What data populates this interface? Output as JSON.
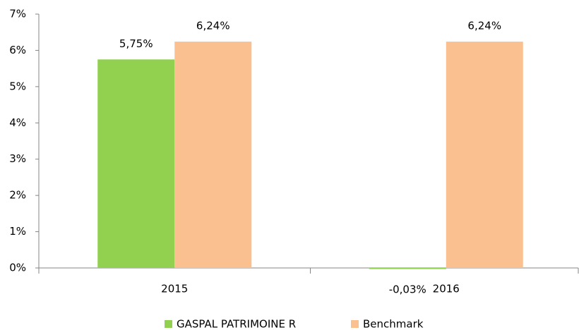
{
  "chart_data": {
    "type": "bar",
    "categories": [
      "2015",
      "2016"
    ],
    "series": [
      {
        "name": "GASPAL PATRIMOINE R",
        "color": "#92d050",
        "values": [
          5.75,
          -0.03
        ],
        "value_labels": [
          "5,75%",
          "-0,03%"
        ]
      },
      {
        "name": "Benchmark",
        "color": "#fac090",
        "values": [
          6.24,
          6.24
        ],
        "value_labels": [
          "6,24%",
          "6,24%"
        ]
      }
    ],
    "ylim": [
      0,
      7
    ],
    "yticks": [
      {
        "value": 0,
        "label": "0%"
      },
      {
        "value": 1,
        "label": "1%"
      },
      {
        "value": 2,
        "label": "2%"
      },
      {
        "value": 3,
        "label": "3%"
      },
      {
        "value": 4,
        "label": "4%"
      },
      {
        "value": 5,
        "label": "5%"
      },
      {
        "value": 6,
        "label": "6%"
      },
      {
        "value": 7,
        "label": "7%"
      }
    ],
    "grid": false,
    "legend": "bottom"
  }
}
